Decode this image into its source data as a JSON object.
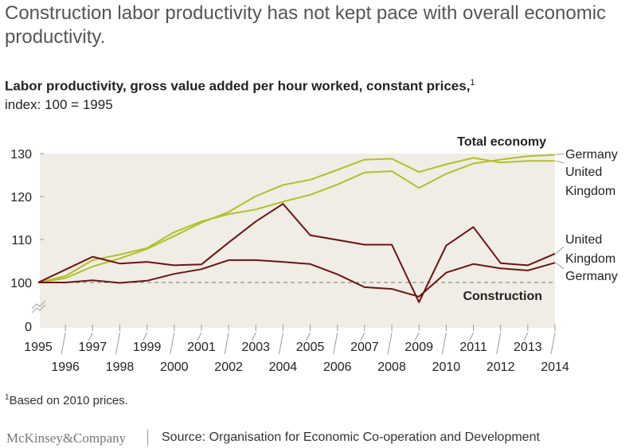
{
  "header": {
    "title": "Construction labor productivity has not kept pace with overall economic productivity.",
    "subtitle": "Labor productivity, gross value added per hour worked, constant prices,",
    "subtitle_footnote": "1",
    "subtitle2": "index: 100 = 1995"
  },
  "footer": {
    "footnote_mark": "1",
    "footnote": "Based on 2010 prices.",
    "logo": "McKinsey&Company",
    "source": "Source: Organisation for Economic Co-operation and Development"
  },
  "colors": {
    "total": "#b3bf2a",
    "construction": "#6e1212",
    "background": "#efede5"
  },
  "chart_data": {
    "type": "line",
    "x": [
      1995,
      1996,
      1997,
      1998,
      1999,
      2000,
      2001,
      2002,
      2003,
      2004,
      2005,
      2006,
      2007,
      2008,
      2009,
      2010,
      2011,
      2012,
      2013,
      2014
    ],
    "ylim": [
      0,
      130
    ],
    "yticks": [
      0,
      100,
      110,
      120,
      130
    ],
    "axis_break": true,
    "baseline": 100,
    "group_labels": {
      "total": "Total economy",
      "construction": "Construction"
    },
    "series": [
      {
        "name": "Germany",
        "group": "total",
        "values": [
          100,
          101.5,
          105.2,
          106.5,
          108.0,
          111.7,
          114.2,
          115.9,
          117.0,
          118.8,
          120.4,
          122.8,
          125.6,
          125.9,
          122.0,
          125.3,
          127.7,
          128.6,
          129.4,
          129.7
        ]
      },
      {
        "name": "United Kingdom",
        "group": "total",
        "values": [
          100,
          101.0,
          103.7,
          105.6,
          107.8,
          110.8,
          113.9,
          116.4,
          120.1,
          122.7,
          123.9,
          126.2,
          128.6,
          128.8,
          125.7,
          127.5,
          129.0,
          127.9,
          128.3,
          128.3
        ]
      },
      {
        "name": "United Kingdom",
        "group": "construction",
        "values": [
          100,
          103.0,
          106.0,
          104.4,
          104.8,
          104.0,
          104.2,
          109.3,
          114.2,
          118.3,
          111.0,
          109.9,
          108.8,
          108.8,
          95.4,
          108.6,
          112.9,
          104.5,
          104.0,
          106.7
        ]
      },
      {
        "name": "Germany",
        "group": "construction",
        "values": [
          100,
          100.0,
          100.5,
          99.9,
          100.4,
          102.0,
          103.1,
          105.2,
          105.2,
          104.8,
          104.3,
          101.9,
          98.9,
          98.5,
          96.7,
          102.3,
          104.3,
          103.3,
          102.8,
          104.6
        ]
      }
    ],
    "end_labels": [
      {
        "text": "Germany",
        "series": 0
      },
      {
        "text": "United\nKingdom",
        "series": 1
      },
      {
        "text": "United\nKingdom",
        "series": 2
      },
      {
        "text": "Germany",
        "series": 3
      }
    ]
  }
}
